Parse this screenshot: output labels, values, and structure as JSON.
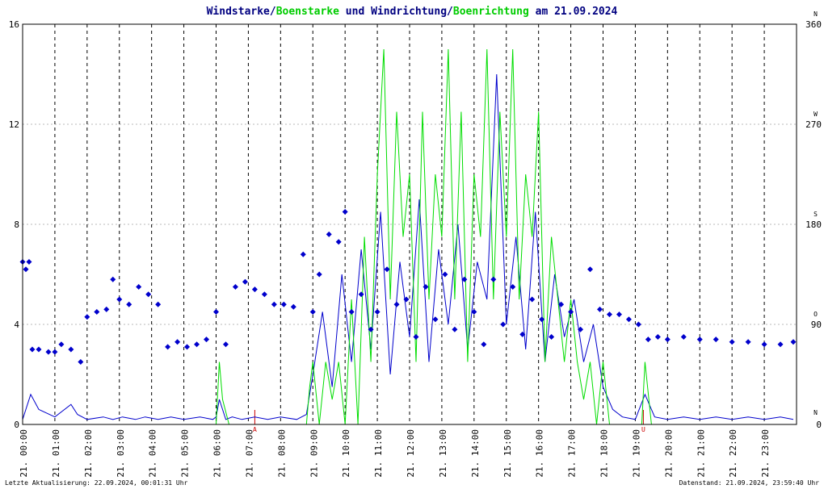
{
  "title": {
    "prefix": "Windstarke/",
    "gust": "Boenstarke",
    "middle": " und Windrichtung/",
    "gustdir": "Boenrichtung",
    "suffix": " am 21.09.2024"
  },
  "footer": {
    "left": "Letzte Aktualisierung: 22.09.2024, 00:01:31 Uhr",
    "right": "Datenstand: 21.09.2024, 23:59:40 Uhr"
  },
  "colors": {
    "wind": "#0000cc",
    "gust": "#00dd00",
    "title_main": "#000080",
    "marker": "#cc0000",
    "grid": "#000000"
  },
  "chart_data": {
    "type": "line",
    "y_left": {
      "range": [
        0,
        16
      ],
      "ticks": [
        "0",
        "4",
        "8",
        "12",
        "16"
      ]
    },
    "y_right": {
      "range": [
        0,
        360
      ],
      "ticks": [
        "0",
        "90",
        "180",
        "270",
        "360"
      ],
      "compass": [
        "N",
        "O",
        "S",
        "W",
        "N"
      ]
    },
    "x": {
      "range_hours": [
        0,
        24
      ],
      "tick_labels": [
        "21. 00:00",
        "21. 01:00",
        "21. 02:00",
        "21. 03:00",
        "21. 04:00",
        "21. 05:00",
        "21. 06:00",
        "21. 07:00",
        "21. 08:00",
        "21. 09:00",
        "21. 10:00",
        "21. 11:00",
        "21. 12:00",
        "21. 13:00",
        "21. 14:00",
        "21. 15:00",
        "21. 16:00",
        "21. 17:00",
        "21. 18:00",
        "21. 19:00",
        "21. 20:00",
        "21. 21:00",
        "21. 22:00",
        "21. 23:00"
      ]
    },
    "markers": [
      {
        "label": "A",
        "hour": 7.2
      },
      {
        "label": "U",
        "hour": 19.25
      }
    ],
    "series": [
      {
        "name": "Windstarke",
        "hours": [
          0.0,
          0.25,
          0.5,
          1.0,
          1.5,
          1.7,
          2.0,
          2.5,
          2.8,
          3.1,
          3.5,
          3.8,
          4.2,
          4.6,
          5.0,
          5.5,
          5.9,
          6.0,
          6.1,
          6.3,
          6.5,
          6.8,
          7.2,
          7.6,
          8.0,
          8.5,
          8.8,
          9.0,
          9.3,
          9.6,
          9.9,
          10.2,
          10.5,
          10.8,
          11.1,
          11.4,
          11.7,
          12.0,
          12.3,
          12.6,
          12.9,
          13.2,
          13.5,
          13.8,
          14.1,
          14.4,
          14.7,
          15.0,
          15.3,
          15.6,
          15.9,
          16.2,
          16.5,
          16.8,
          17.1,
          17.4,
          17.7,
          18.0,
          18.3,
          18.6,
          19.0,
          19.3,
          19.6,
          20.0,
          20.5,
          21.0,
          21.5,
          22.0,
          22.5,
          23.0,
          23.5,
          23.9
        ],
        "values": [
          0.2,
          1.2,
          0.6,
          0.3,
          0.8,
          0.4,
          0.2,
          0.3,
          0.2,
          0.3,
          0.2,
          0.3,
          0.2,
          0.3,
          0.2,
          0.3,
          0.2,
          0.3,
          1.0,
          0.2,
          0.3,
          0.2,
          0.3,
          0.2,
          0.3,
          0.2,
          0.4,
          2.0,
          4.5,
          1.5,
          6.0,
          2.5,
          7.0,
          3.0,
          8.5,
          2.0,
          6.5,
          3.5,
          9.0,
          2.5,
          7.0,
          4.0,
          8.0,
          3.0,
          6.5,
          5.0,
          14.0,
          4.0,
          7.5,
          3.0,
          8.5,
          2.5,
          6.0,
          3.5,
          5.0,
          2.5,
          4.0,
          1.5,
          0.6,
          0.3,
          0.2,
          1.2,
          0.3,
          0.2,
          0.3,
          0.2,
          0.3,
          0.2,
          0.3,
          0.2,
          0.3,
          0.2
        ]
      },
      {
        "name": "Boenstarke",
        "hours": [
          0.0,
          0.5,
          1.0,
          1.5,
          2.0,
          2.5,
          3.0,
          3.5,
          4.0,
          4.5,
          5.0,
          5.5,
          6.0,
          6.1,
          6.2,
          6.4,
          6.6,
          7.0,
          7.5,
          8.0,
          8.5,
          8.8,
          8.9,
          9.0,
          9.2,
          9.4,
          9.6,
          9.8,
          10.0,
          10.2,
          10.4,
          10.6,
          10.8,
          11.0,
          11.2,
          11.4,
          11.6,
          11.8,
          12.0,
          12.2,
          12.4,
          12.6,
          12.8,
          13.0,
          13.2,
          13.4,
          13.6,
          13.8,
          14.0,
          14.2,
          14.4,
          14.6,
          14.8,
          15.0,
          15.2,
          15.4,
          15.6,
          15.8,
          16.0,
          16.2,
          16.4,
          16.6,
          16.8,
          17.0,
          17.2,
          17.4,
          17.6,
          17.8,
          18.0,
          18.2,
          18.4,
          18.6,
          19.0,
          19.2,
          19.3,
          19.5,
          20.0,
          21.0,
          22.0,
          23.0,
          23.9
        ],
        "values": [
          0,
          0,
          0,
          0,
          0,
          0,
          0,
          0,
          0,
          0,
          0,
          0,
          0,
          2.5,
          1.0,
          0,
          0,
          0,
          0,
          0,
          0,
          0,
          1.5,
          2.5,
          0,
          2.5,
          1.0,
          2.5,
          0,
          5.0,
          0,
          7.5,
          2.5,
          10.0,
          15.0,
          5.0,
          12.5,
          7.5,
          10.0,
          2.5,
          12.5,
          5.0,
          10.0,
          7.5,
          15.0,
          5.0,
          12.5,
          2.5,
          10.0,
          7.5,
          15.0,
          5.0,
          12.5,
          7.5,
          15.0,
          5.0,
          10.0,
          7.5,
          12.5,
          2.5,
          7.5,
          5.0,
          2.5,
          5.0,
          2.5,
          1.0,
          2.5,
          0,
          2.5,
          0,
          0,
          0,
          0,
          0,
          2.5,
          0,
          0,
          0,
          0,
          0,
          0
        ]
      },
      {
        "name": "Windrichtung",
        "hours": [
          0.0,
          0.1,
          0.2,
          0.3,
          0.5,
          0.8,
          1.0,
          1.2,
          1.5,
          1.8,
          2.0,
          2.3,
          2.6,
          2.8,
          3.0,
          3.3,
          3.6,
          3.9,
          4.2,
          4.5,
          4.8,
          5.1,
          5.4,
          5.7,
          6.0,
          6.3,
          6.6,
          6.9,
          7.2,
          7.5,
          7.8,
          8.1,
          8.4,
          8.7,
          9.0,
          9.2,
          9.5,
          9.8,
          10.0,
          10.2,
          10.5,
          10.8,
          11.0,
          11.3,
          11.6,
          11.9,
          12.2,
          12.5,
          12.8,
          13.1,
          13.4,
          13.7,
          14.0,
          14.3,
          14.6,
          14.9,
          15.2,
          15.5,
          15.8,
          16.1,
          16.4,
          16.7,
          17.0,
          17.3,
          17.6,
          17.9,
          18.2,
          18.5,
          18.8,
          19.1,
          19.4,
          19.7,
          20.0,
          20.5,
          21.0,
          21.5,
          22.0,
          22.5,
          23.0,
          23.5,
          23.9
        ],
        "values": [
          6.5,
          6.2,
          6.5,
          3.0,
          3.0,
          2.9,
          2.9,
          3.2,
          3.0,
          2.5,
          4.3,
          4.5,
          4.6,
          5.8,
          5.0,
          4.8,
          5.5,
          5.2,
          4.8,
          3.1,
          3.3,
          3.1,
          3.2,
          3.4,
          4.5,
          3.2,
          5.5,
          5.7,
          5.4,
          5.2,
          4.8,
          4.8,
          4.7,
          6.8,
          4.5,
          6.0,
          7.6,
          7.3,
          8.5,
          4.5,
          5.2,
          3.8,
          4.5,
          6.2,
          4.8,
          5.0,
          3.5,
          5.5,
          4.2,
          6.0,
          3.8,
          5.8,
          4.5,
          3.2,
          5.8,
          4.0,
          5.5,
          3.6,
          5.0,
          4.2,
          3.5,
          4.8,
          4.5,
          3.8,
          6.2,
          4.6,
          4.4,
          4.4,
          4.2,
          4.0,
          3.4,
          3.5,
          3.4,
          3.5,
          3.4,
          3.4,
          3.3,
          3.3,
          3.2,
          3.2,
          3.3
        ]
      }
    ]
  }
}
